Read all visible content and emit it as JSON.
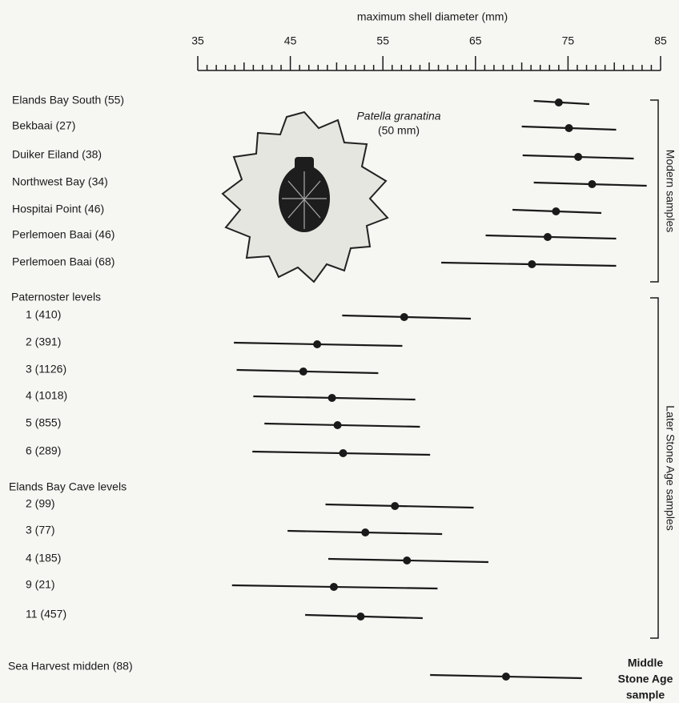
{
  "chart_data": {
    "type": "dot-range",
    "x_label": "maximum shell diameter (mm)",
    "xlim": [
      35,
      85
    ],
    "xticks": [
      35,
      45,
      55,
      65,
      75,
      85
    ],
    "color": "#1a1a1a",
    "annotation": {
      "species": "Patella granatina",
      "size": "(50 mm)"
    },
    "groups": [
      {
        "categories": [
          "Elands Bay South (55)",
          "Bekbaai (27)",
          "Duiker Eiland (38)",
          "Northwest Bay (34)",
          "Hospitai Point (46)",
          "Perlemoen Baai (46)",
          "Perlemoen Baai (68)"
        ],
        "values": [
          74.0,
          75.1,
          76.1,
          77.6,
          73.7,
          72.8,
          71.1
        ],
        "low": [
          71.3,
          70.0,
          70.1,
          71.3,
          69.0,
          66.1,
          61.3
        ],
        "high": [
          77.3,
          80.2,
          82.1,
          83.5,
          78.6,
          80.2,
          80.2
        ]
      },
      {
        "heading": "Paternoster levels",
        "categories": [
          "1 (410)",
          "2 (391)",
          "3 (1126)",
          "4 (1018)",
          "5 (855)",
          "6 (289)"
        ],
        "values": [
          57.3,
          47.9,
          46.4,
          49.5,
          50.1,
          50.7
        ],
        "low": [
          50.6,
          38.9,
          39.2,
          41.0,
          42.2,
          40.9
        ],
        "high": [
          64.5,
          57.1,
          54.5,
          58.5,
          59.0,
          60.1
        ]
      },
      {
        "heading": "Elands Bay Cave levels",
        "categories": [
          "2 (99)",
          "3 (77)",
          "4 (185)",
          "9 (21)",
          "11 (457)"
        ],
        "values": [
          56.3,
          53.1,
          57.6,
          49.7,
          52.6
        ],
        "low": [
          48.8,
          44.7,
          49.1,
          38.7,
          46.6
        ],
        "high": [
          64.8,
          61.4,
          66.4,
          60.9,
          59.3
        ]
      },
      {
        "categories": [
          "Sea Harvest midden (88)"
        ],
        "values": [
          68.3
        ],
        "low": [
          60.1
        ],
        "high": [
          76.5
        ]
      }
    ],
    "periods": [
      {
        "label": "Modern samples"
      },
      {
        "label": "Later Stone Age samples"
      },
      {
        "label": [
          "Middle",
          "Stone Age",
          "sample"
        ]
      }
    ]
  }
}
